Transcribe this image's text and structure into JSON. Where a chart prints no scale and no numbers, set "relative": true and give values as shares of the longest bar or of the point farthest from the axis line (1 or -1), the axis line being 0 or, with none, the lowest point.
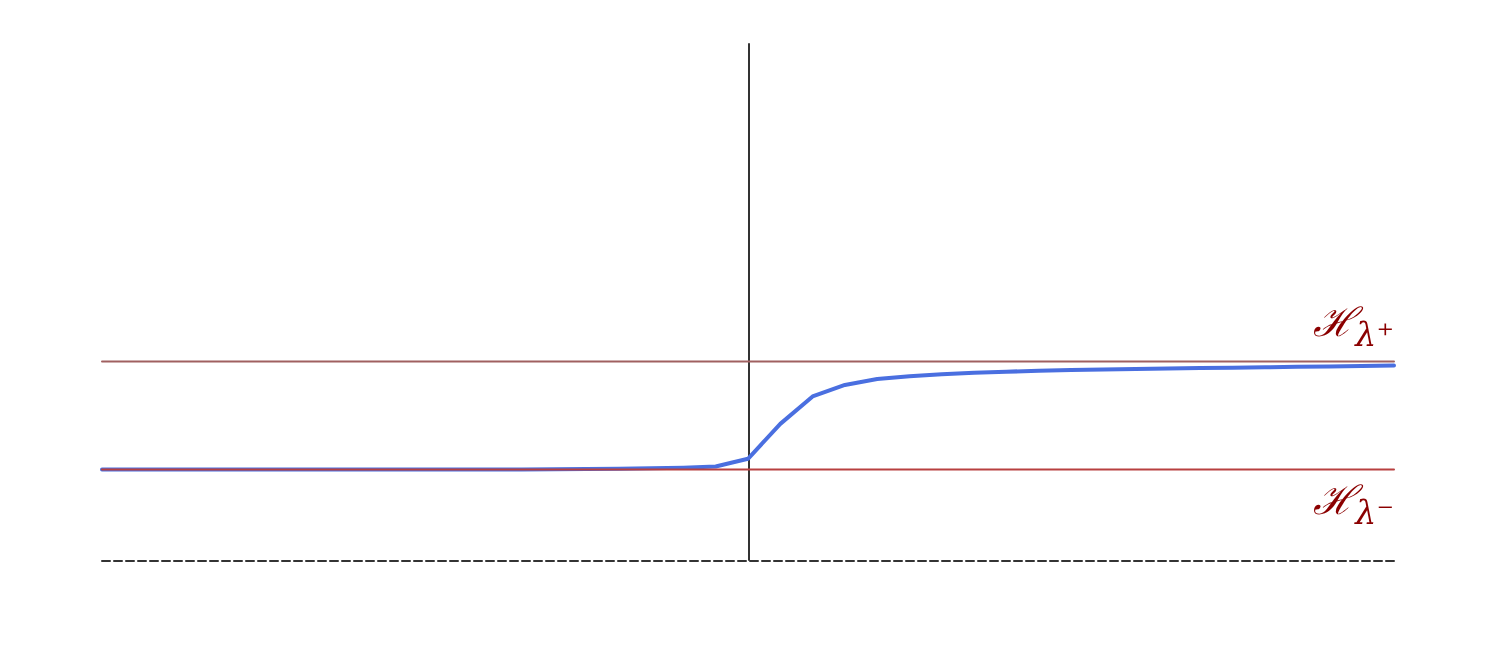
{
  "chart_data": {
    "type": "line",
    "relative": true,
    "grid": false,
    "marker": "none",
    "line_style": "solid",
    "categories": [
      null,
      null,
      null,
      null,
      null,
      null,
      null,
      null,
      null,
      null,
      null,
      null,
      null,
      null,
      null,
      null,
      null,
      null,
      null,
      null,
      null,
      null,
      null,
      null,
      null,
      null,
      null,
      null,
      null,
      null,
      null,
      null,
      null,
      null,
      null,
      null,
      null,
      null,
      null,
      null,
      null
    ],
    "series": [
      {
        "name": "ℋ$_{λ⁺}$",
        "color": "#a06060",
        "values": [
          1,
          1,
          1,
          1,
          1,
          1,
          1,
          1,
          1,
          1,
          1,
          1,
          1,
          1,
          1,
          1,
          1,
          1,
          1,
          1,
          1,
          1,
          1,
          1,
          1,
          1,
          1,
          1,
          1,
          1,
          1,
          1,
          1,
          1,
          1,
          1,
          1,
          1,
          1,
          1,
          1
        ]
      },
      {
        "name": "ℋ$_{λ⁻}$",
        "color": "#b84040",
        "values": [
          0.456,
          0.456,
          0.456,
          0.456,
          0.456,
          0.456,
          0.456,
          0.456,
          0.456,
          0.456,
          0.456,
          0.456,
          0.456,
          0.456,
          0.456,
          0.456,
          0.456,
          0.456,
          0.456,
          0.456,
          0.456,
          0.456,
          0.456,
          0.456,
          0.456,
          0.456,
          0.456,
          0.456,
          0.456,
          0.456,
          0.456,
          0.456,
          0.456,
          0.456,
          0.456,
          0.456,
          0.456,
          0.456,
          0.456,
          0.456,
          0.456
        ]
      },
      {
        "color": "#4a6fe0",
        "values": [
          0.456,
          0.456,
          0.456,
          0.456,
          0.456,
          0.456,
          0.456,
          0.456,
          0.456,
          0.456,
          0.456,
          0.456,
          0.456,
          0.456,
          0.457,
          0.458,
          0.46,
          0.462,
          0.465,
          0.471,
          0.51,
          0.686,
          0.824,
          0.882,
          0.912,
          0.926,
          0.936,
          0.943,
          0.949,
          0.953,
          0.957,
          0.96,
          0.963,
          0.965,
          0.967,
          0.969,
          0.971,
          0.974,
          0.975,
          0.978,
          0.98
        ]
      }
    ]
  }
}
